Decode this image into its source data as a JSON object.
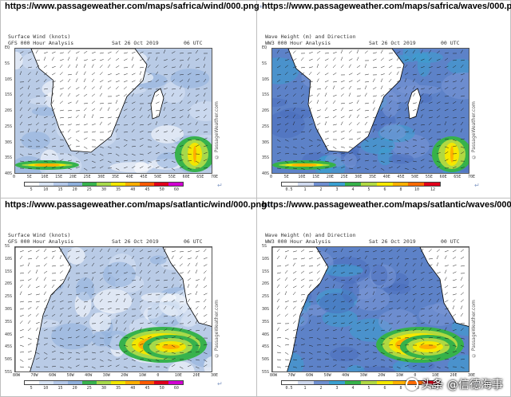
{
  "panels": [
    {
      "url": "https://www.passageweather.com/maps/safrica/wind/000.png",
      "title_line1": "Surface Wind (knots)",
      "title_line2": "GFS 000 Hour Analysis",
      "date": "Sat 26 Oct 2019",
      "utc": "06 UTC",
      "kind": "wind",
      "region": "safrica",
      "lat_labels": [
        "EQ",
        "5S",
        "10S",
        "15S",
        "20S",
        "25S",
        "30S",
        "35S",
        "40S"
      ],
      "lon_labels": [
        "0",
        "5E",
        "10E",
        "15E",
        "20E",
        "25E",
        "30E",
        "35E",
        "40E",
        "45E",
        "50E",
        "55E",
        "60E",
        "65E",
        "70E"
      ],
      "cbar_labels": [
        "5",
        "10",
        "15",
        "20",
        "25",
        "30",
        "35",
        "40",
        "45",
        "50",
        "60"
      ],
      "watermark": "© PassageWeather.com"
    },
    {
      "url": "https://www.passageweather.com/maps/safrica/waves/000.png",
      "title_line1": "Wave Height (m) and Direction",
      "title_line2": "WW3 000 Hour Analysis",
      "date": "Sat 26 Oct 2019",
      "utc": "00 UTC",
      "kind": "waves",
      "region": "safrica",
      "lat_labels": [
        "EQ",
        "5S",
        "10S",
        "15S",
        "20S",
        "25S",
        "30S",
        "35S",
        "40S"
      ],
      "lon_labels": [
        "0",
        "5E",
        "10E",
        "15E",
        "20E",
        "25E",
        "30E",
        "35E",
        "40E",
        "45E",
        "50E",
        "55E",
        "60E",
        "65E",
        "70E"
      ],
      "cbar_labels": [
        "0.5",
        "1",
        "2",
        "3",
        "4",
        "5",
        "6",
        "8",
        "10",
        "12"
      ],
      "watermark": "© PassageWeather.com"
    },
    {
      "url": "https://www.passageweather.com/maps/satlantic/wind/000.png",
      "title_line1": "Surface Wind (knots)",
      "title_line2": "GFS 000 Hour Analysis",
      "date": "Sat 26 Oct 2019",
      "utc": "06 UTC",
      "kind": "wind",
      "region": "satlantic",
      "lat_labels": [
        "5S",
        "10S",
        "15S",
        "20S",
        "25S",
        "30S",
        "35S",
        "40S",
        "45S",
        "50S",
        "55S"
      ],
      "lon_labels": [
        "80W",
        "70W",
        "60W",
        "50W",
        "40W",
        "30W",
        "20W",
        "10W",
        "0",
        "10E",
        "20E",
        "30E"
      ],
      "cbar_labels": [
        "5",
        "10",
        "15",
        "20",
        "25",
        "30",
        "35",
        "40",
        "45",
        "50",
        "60"
      ],
      "watermark": "© PassageWeather.com"
    },
    {
      "url": "https://www.passageweather.com/maps/satlantic/waves/000.png",
      "title_line1": "Wave Height (m) and Direction",
      "title_line2": "WW3 000 Hour Analysis",
      "date": "Sat 26 Oct 2019",
      "utc": "00 UTC",
      "kind": "waves",
      "region": "satlantic",
      "lat_labels": [
        "5S",
        "10S",
        "15S",
        "20S",
        "25S",
        "30S",
        "35S",
        "40S",
        "45S",
        "50S",
        "55S"
      ],
      "lon_labels": [
        "80W",
        "70W",
        "60W",
        "50W",
        "40W",
        "30W",
        "20W",
        "10W",
        "0",
        "10E",
        "20E",
        "30E"
      ],
      "cbar_labels": [
        "0.5",
        "1",
        "2",
        "3",
        "4",
        "5",
        "6",
        "8",
        "10",
        "12"
      ],
      "watermark": "© PassageWeather.com"
    }
  ],
  "colors": {
    "wind_scale": [
      "#ffffff",
      "#d8e4f4",
      "#b4c8e8",
      "#8fb0dc",
      "#37b24d",
      "#a7d94a",
      "#f2e600",
      "#ffae00",
      "#ff5a00",
      "#e0001b",
      "#d000d0"
    ],
    "wave_scale": [
      "#ffffff",
      "#cfd9ee",
      "#6f8fd0",
      "#3aa0d0",
      "#36b24a",
      "#b0d842",
      "#f5e800",
      "#ffb000",
      "#ff6a00",
      "#e0001b"
    ],
    "ocean_wind": "#b9cbe6",
    "ocean_wave": "#5d82c8",
    "land": "#ffffff"
  },
  "overlay_watermark": "头条 @信德海事"
}
